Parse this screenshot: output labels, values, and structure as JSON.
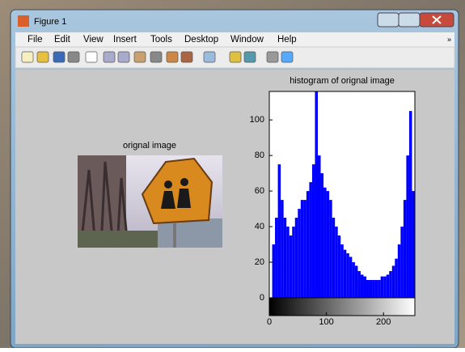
{
  "window": {
    "title": "Figure 1"
  },
  "menu": [
    "File",
    "Edit",
    "View",
    "Insert",
    "Tools",
    "Desktop",
    "Window",
    "Help"
  ],
  "left_axes": {
    "title": "orignal image"
  },
  "chart_data": {
    "type": "histogram",
    "title": "histogram of orignal image",
    "bins": [
      0,
      5,
      10,
      15,
      20,
      25,
      30,
      35,
      40,
      45,
      50,
      55,
      60,
      65,
      70,
      75,
      80,
      85,
      90,
      95,
      100,
      105,
      110,
      115,
      120,
      125,
      130,
      135,
      140,
      145,
      150,
      155,
      160,
      165,
      170,
      175,
      180,
      185,
      190,
      195,
      200,
      205,
      210,
      215,
      220,
      225,
      230,
      235,
      240,
      245,
      250,
      255
    ],
    "values": [
      0,
      30,
      45,
      75,
      55,
      45,
      40,
      35,
      40,
      45,
      50,
      55,
      55,
      60,
      65,
      75,
      116,
      80,
      70,
      62,
      60,
      55,
      45,
      40,
      35,
      30,
      27,
      25,
      23,
      20,
      18,
      15,
      13,
      12,
      10,
      10,
      10,
      10,
      10,
      12,
      12,
      13,
      15,
      18,
      22,
      30,
      40,
      55,
      80,
      105,
      60
    ],
    "color": "#0000ff",
    "xlim": [
      0,
      255
    ],
    "ylim": [
      0,
      116
    ],
    "xticks": [
      0,
      100,
      200
    ],
    "yticks": [
      0,
      20,
      40,
      60,
      80,
      100
    ],
    "grid": false
  }
}
